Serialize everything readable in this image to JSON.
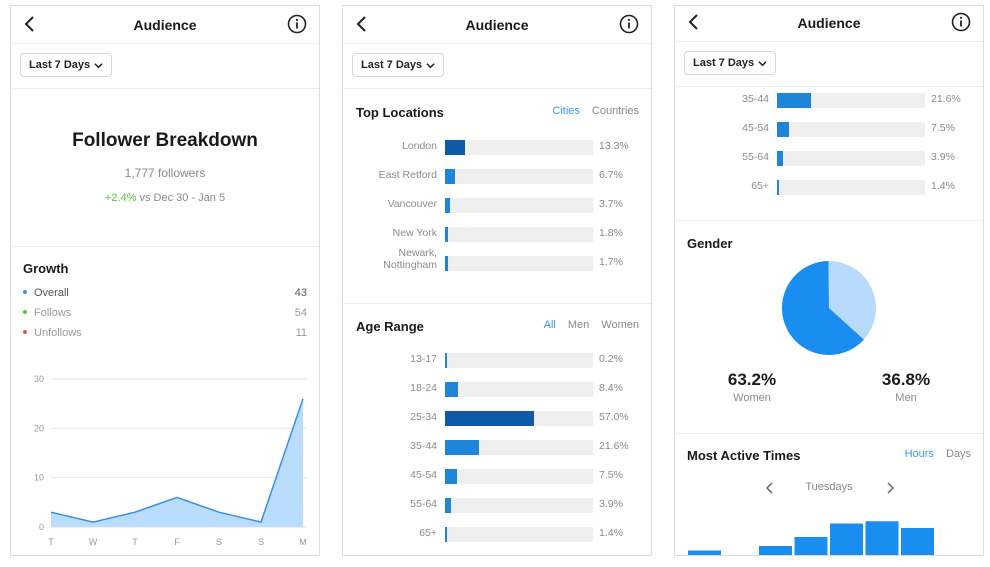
{
  "colors": {
    "accent": "#3897f0",
    "bar_blue": "#1f85d8",
    "bar_dark": "#0f5aa6",
    "green": "#5ec23a",
    "follows_dot": "#5ec23a",
    "unfollows_dot": "#e05656",
    "overall_dot": "#3897f0",
    "area_fill": "#b9dcff"
  },
  "screens": [
    {
      "title": "Audience",
      "filter": "Last 7 Days",
      "breakdown": {
        "title": "Follower Breakdown",
        "followers": "1,777 followers",
        "delta_value": "+2.4%",
        "delta_rest": " vs Dec 30 - Jan 5"
      },
      "growth": {
        "title": "Growth",
        "legend": [
          {
            "label": "Overall",
            "value": "43"
          },
          {
            "label": "Follows",
            "value": "54"
          },
          {
            "label": "Unfollows",
            "value": "11"
          }
        ]
      }
    },
    {
      "title": "Audience",
      "filter": "Last 7 Days",
      "top_locations": {
        "title": "Top Locations",
        "tabs": [
          "Cities",
          "Countries"
        ],
        "active_tab": "Cities",
        "rows": [
          {
            "label": "London",
            "pct": "13.3%",
            "value": 13.3
          },
          {
            "label": "East Retford",
            "pct": "6.7%",
            "value": 6.7
          },
          {
            "label": "Vancouver",
            "pct": "3.7%",
            "value": 3.7
          },
          {
            "label": "New York",
            "pct": "1.8%",
            "value": 1.8
          },
          {
            "label": "Newark,\nNottingham",
            "pct": "1.7%",
            "value": 1.7
          }
        ]
      },
      "age_range": {
        "title": "Age Range",
        "tabs": [
          "All",
          "Men",
          "Women"
        ],
        "active_tab": "All",
        "rows": [
          {
            "label": "13-17",
            "pct": "0.2%",
            "value": 0.2
          },
          {
            "label": "18-24",
            "pct": "8.4%",
            "value": 8.4
          },
          {
            "label": "25-34",
            "pct": "57.0%",
            "value": 57.0
          },
          {
            "label": "35-44",
            "pct": "21.6%",
            "value": 21.6
          },
          {
            "label": "45-54",
            "pct": "7.5%",
            "value": 7.5
          },
          {
            "label": "55-64",
            "pct": "3.9%",
            "value": 3.9
          },
          {
            "label": "65+",
            "pct": "1.4%",
            "value": 1.4
          }
        ]
      }
    },
    {
      "title": "Audience",
      "filter": "Last 7 Days",
      "age_rows": [
        {
          "label": "35-44",
          "pct": "21.6%",
          "value": 21.6
        },
        {
          "label": "45-54",
          "pct": "7.5%",
          "value": 7.5
        },
        {
          "label": "55-64",
          "pct": "3.9%",
          "value": 3.9
        },
        {
          "label": "65+",
          "pct": "1.4%",
          "value": 1.4
        }
      ],
      "gender": {
        "title": "Gender",
        "women_pct": "63.2%",
        "women_label": "Women",
        "men_pct": "36.8%",
        "men_label": "Men"
      },
      "active_times": {
        "title": "Most Active Times",
        "tabs": [
          "Hours",
          "Days"
        ],
        "active_tab": "Hours",
        "day": "Tuesdays"
      }
    }
  ],
  "chart_data": [
    {
      "type": "area",
      "x": [
        "T",
        "W",
        "T",
        "F",
        "S",
        "S",
        "M"
      ],
      "series": [
        {
          "values": [
            3,
            1,
            3,
            6,
            3,
            1,
            26
          ]
        }
      ],
      "ylim": [
        0,
        30
      ],
      "yticks": [
        0,
        10,
        20,
        30
      ],
      "grid": true
    },
    {
      "type": "pie",
      "categories": [
        "Women",
        "Men"
      ],
      "values": [
        63.2,
        36.8
      ]
    },
    {
      "type": "bar",
      "values": [
        1,
        0,
        2,
        4,
        7,
        7.5,
        6
      ]
    }
  ]
}
